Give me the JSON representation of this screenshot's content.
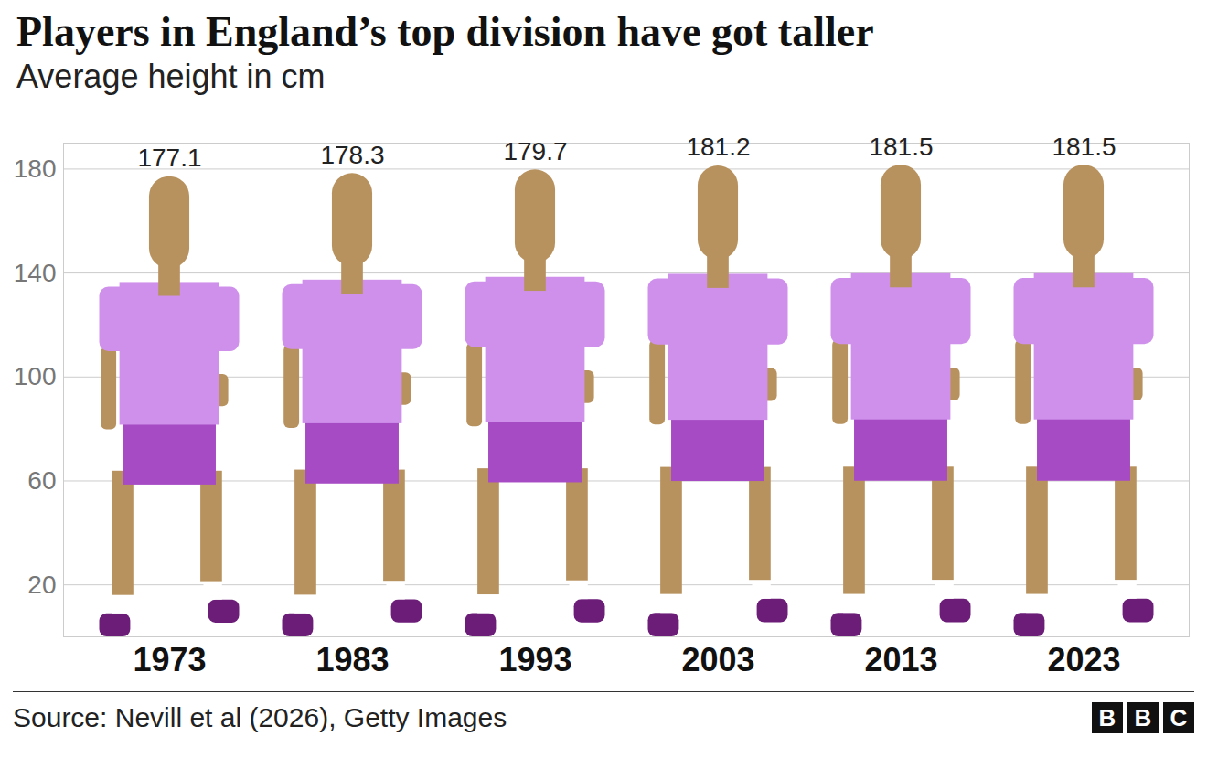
{
  "chart_data": {
    "type": "bar",
    "title": "Players in England’s top division have got taller",
    "subtitle": "Average height in cm",
    "source": "Source: Nevill et al (2026), Getty Images",
    "credit": "BBC",
    "categories": [
      "1973",
      "1983",
      "1993",
      "2003",
      "2013",
      "2023"
    ],
    "values": [
      177.1,
      178.3,
      179.7,
      181.2,
      181.5,
      181.5
    ],
    "color": "#cf90eb",
    "ylim": [
      0,
      190
    ],
    "yticks": [
      20,
      60,
      100,
      140,
      180
    ],
    "grid": true,
    "data_labels": true
  }
}
